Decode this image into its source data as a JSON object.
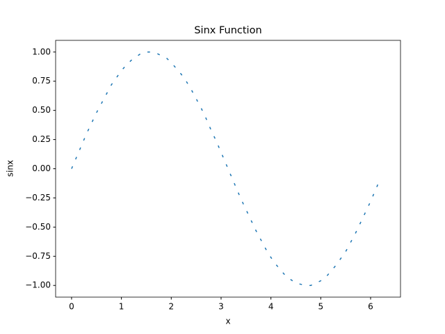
{
  "chart_data": {
    "type": "line",
    "title": "Sinx Function",
    "x_label": "x",
    "y_label": "sinx",
    "x": [
      0,
      0.1,
      0.2,
      0.3,
      0.4,
      0.5,
      0.6,
      0.7,
      0.8,
      0.9,
      1.0,
      1.1,
      1.2,
      1.3,
      1.4,
      1.5,
      1.6,
      1.7,
      1.8,
      1.9,
      2.0,
      2.1,
      2.2,
      2.3,
      2.4,
      2.5,
      2.6,
      2.7,
      2.8,
      2.9,
      3.0,
      3.1,
      3.2,
      3.3,
      3.4,
      3.5,
      3.6,
      3.7,
      3.8,
      3.9,
      4.0,
      4.1,
      4.2,
      4.3,
      4.4,
      4.5,
      4.6,
      4.7,
      4.8,
      4.9,
      5.0,
      5.1,
      5.2,
      5.3,
      5.4,
      5.5,
      5.6,
      5.7,
      5.8,
      5.9,
      6.0,
      6.1,
      6.2
    ],
    "series": [
      {
        "color": "#1f77b4",
        "linestyle": "dashed",
        "values": [
          0,
          0.1,
          0.2,
          0.3,
          0.39,
          0.48,
          0.56,
          0.64,
          0.72,
          0.78,
          0.84,
          0.89,
          0.93,
          0.96,
          0.99,
          1.0,
          1.0,
          0.99,
          0.97,
          0.95,
          0.91,
          0.86,
          0.81,
          0.75,
          0.68,
          0.6,
          0.52,
          0.43,
          0.33,
          0.24,
          0.14,
          0.04,
          -0.06,
          -0.16,
          -0.26,
          -0.35,
          -0.44,
          -0.53,
          -0.61,
          -0.69,
          -0.76,
          -0.82,
          -0.87,
          -0.92,
          -0.95,
          -0.98,
          -0.99,
          -1.0,
          -1.0,
          -0.98,
          -0.96,
          -0.93,
          -0.88,
          -0.83,
          -0.77,
          -0.71,
          -0.63,
          -0.55,
          -0.46,
          -0.37,
          -0.28,
          -0.18,
          -0.08
        ]
      }
    ],
    "xlim": [
      -0.32,
      6.6
    ],
    "ylim": [
      -1.1,
      1.1
    ],
    "xticks": [
      0,
      1,
      2,
      3,
      4,
      5,
      6
    ],
    "yticks": [
      {
        "value": -1,
        "label": "−1.00"
      },
      {
        "value": -0.75,
        "label": "−0.75"
      },
      {
        "value": -0.5,
        "label": "−0.50"
      },
      {
        "value": -0.25,
        "label": "−0.25"
      },
      {
        "value": 0,
        "label": "0.00"
      },
      {
        "value": 0.25,
        "label": "0.25"
      },
      {
        "value": 0.5,
        "label": "0.50"
      },
      {
        "value": 0.75,
        "label": "0.75"
      },
      {
        "value": 1,
        "label": "1.00"
      }
    ],
    "grid": false
  }
}
